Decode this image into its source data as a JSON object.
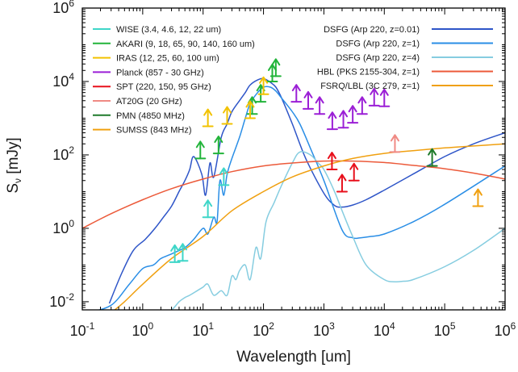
{
  "chart_data": {
    "type": "line",
    "xlabel": "Wavelength [um]",
    "ylabel": "S",
    "ylabel_sub": "ν",
    "ylabel_unit": " [mJy]",
    "xscale": "log",
    "yscale": "log",
    "xlim": [
      0.1,
      1000000
    ],
    "ylim": [
      0.006,
      1000000
    ],
    "x_tick_labels": [
      {
        "base": "10",
        "exp": "-1"
      },
      {
        "base": "10",
        "exp": "0"
      },
      {
        "base": "10",
        "exp": "1"
      },
      {
        "base": "10",
        "exp": "2"
      },
      {
        "base": "10",
        "exp": "3"
      },
      {
        "base": "10",
        "exp": "4"
      },
      {
        "base": "10",
        "exp": "5"
      },
      {
        "base": "10",
        "exp": "6"
      }
    ],
    "y_tick_labels": [
      {
        "base": "10",
        "exp": "-2"
      },
      {
        "base": "10",
        "exp": "0"
      },
      {
        "base": "10",
        "exp": "2"
      },
      {
        "base": "10",
        "exp": "4"
      },
      {
        "base": "10",
        "exp": "6"
      }
    ],
    "grid": false,
    "legends": [
      {
        "placement": "top-left",
        "entries": [
          {
            "label": "WISE (3.4, 4.6, 12, 22 um)",
            "color": "#3fd6c8"
          },
          {
            "label": "AKARI (9, 18, 65, 90, 140, 160 um)",
            "color": "#22b43a"
          },
          {
            "label": "IRAS (12, 25, 60, 100 um)",
            "color": "#f2c200"
          },
          {
            "label": "Planck (857 - 30 GHz)",
            "color": "#9b1fd6"
          },
          {
            "label": "SPT (220, 150, 95 GHz)",
            "color": "#e8101c"
          },
          {
            "label": "AT20G (20 GHz)",
            "color": "#f08a84"
          },
          {
            "label": "PMN (4850 MHz)",
            "color": "#1e7a2a"
          },
          {
            "label": "SUMSS (843 MHz)",
            "color": "#f0a010"
          }
        ]
      },
      {
        "placement": "top-right",
        "entries": [
          {
            "label": "DSFG (Arp 220, z=0.01)",
            "color": "#2e55c8"
          },
          {
            "label": "DSFG (Arp 220, z=1)",
            "color": "#2a8ee6"
          },
          {
            "label": "DSFG (Arp 220, z=4)",
            "color": "#86cde0"
          },
          {
            "label": "HBL (PKS 2155-304, z=1)",
            "color": "#ec5a3a"
          },
          {
            "label": "FSRQ/LBL (3C 279, z=1)",
            "color": "#f0a010"
          }
        ]
      }
    ],
    "series": [
      {
        "name": "DSFG (Arp 220, z=0.01)",
        "color": "#2e55c8",
        "x": [
          0.28,
          0.45,
          0.7,
          1.1,
          1.6,
          2.2,
          3.0,
          4.0,
          5.0,
          6.0,
          7.0,
          9.5,
          11,
          13,
          15,
          20,
          25,
          30,
          40,
          50,
          60,
          80,
          100,
          130,
          160,
          200,
          300,
          500,
          1000,
          1500,
          2000,
          3000,
          5000,
          10000,
          30000,
          100000,
          300000,
          1000000
        ],
        "y": [
          0.009,
          0.06,
          0.25,
          0.5,
          1.0,
          2.0,
          4.0,
          10,
          20,
          40,
          90,
          30,
          8,
          60,
          25,
          300,
          700,
          1500,
          3000,
          5000,
          8000,
          11000,
          12000,
          9500,
          7000,
          3500,
          700,
          80,
          9,
          4.2,
          3.8,
          4.3,
          6.0,
          11,
          30,
          90,
          200,
          400
        ]
      },
      {
        "name": "DSFG (Arp 220, z=1)",
        "color": "#2a8ee6",
        "x": [
          0.12,
          0.3,
          0.6,
          1.0,
          1.5,
          2.0,
          3.0,
          5.0,
          7.0,
          10,
          12,
          15,
          17,
          19,
          22,
          25,
          30,
          40,
          50,
          60,
          80,
          100,
          130,
          160,
          200,
          300,
          400,
          600,
          1000,
          2000,
          3000,
          4000,
          6000,
          10000,
          30000,
          100000,
          1000000
        ],
        "y": [
          0.005,
          0.008,
          0.03,
          0.08,
          0.1,
          0.15,
          0.2,
          0.3,
          0.5,
          1.0,
          0.7,
          2.0,
          1.5,
          20,
          8,
          30,
          80,
          300,
          1000,
          2500,
          5000,
          7000,
          7000,
          5500,
          3500,
          1500,
          700,
          150,
          20,
          0.9,
          0.55,
          0.55,
          0.6,
          0.7,
          1.5,
          4.5,
          50
        ]
      },
      {
        "name": "DSFG (Arp 220, z=4)",
        "color": "#86cde0",
        "x": [
          2.0,
          3.0,
          4.0,
          5.0,
          6.0,
          8.0,
          10,
          12,
          15,
          20,
          25,
          30,
          35,
          40,
          50,
          60,
          75,
          90,
          110,
          150,
          200,
          300,
          400,
          600,
          800,
          1000,
          1500,
          2000,
          3000,
          5000,
          10000,
          15000,
          20000,
          30000,
          100000,
          300000,
          1000000
        ],
        "y": [
          0.005,
          0.006,
          0.01,
          0.013,
          0.015,
          0.02,
          0.025,
          0.03,
          0.015,
          0.02,
          0.015,
          0.05,
          0.04,
          0.07,
          0.1,
          0.04,
          0.3,
          0.15,
          1.5,
          5,
          15,
          60,
          120,
          100,
          60,
          40,
          10,
          3,
          0.6,
          0.1,
          0.04,
          0.035,
          0.036,
          0.04,
          0.09,
          0.25,
          1.0
        ]
      },
      {
        "name": "HBL (PKS 2155-304, z=1)",
        "color": "#ec5a3a",
        "x": [
          0.1,
          0.3,
          1.0,
          3.0,
          10,
          30,
          100,
          300,
          1000,
          3000,
          10000,
          30000,
          100000,
          300000,
          1000000
        ],
        "y": [
          1.0,
          2.5,
          6.0,
          12,
          22,
          35,
          50,
          60,
          68,
          68,
          62,
          52,
          42,
          32,
          22
        ]
      },
      {
        "name": "FSRQ/LBL (3C 279, z=1)",
        "color": "#f0a010",
        "x": [
          0.3,
          0.5,
          1.0,
          3.0,
          10,
          30,
          100,
          300,
          1000,
          3000,
          10000,
          30000,
          100000,
          300000,
          1000000
        ],
        "y": [
          0.005,
          0.01,
          0.03,
          0.15,
          0.6,
          3,
          10,
          25,
          50,
          80,
          110,
          130,
          155,
          175,
          200
        ]
      }
    ],
    "upper_limits": [
      {
        "survey": "WISE",
        "color": "#3fd6c8",
        "points": [
          [
            3.4,
            0.12
          ],
          [
            4.6,
            0.13
          ],
          [
            12,
            2.0
          ],
          [
            22,
            15
          ]
        ]
      },
      {
        "survey": "AKARI",
        "color": "#22b43a",
        "points": [
          [
            9,
            80
          ],
          [
            18,
            110
          ],
          [
            65,
            1300
          ],
          [
            90,
            2800
          ],
          [
            140,
            10000
          ],
          [
            160,
            14000
          ]
        ]
      },
      {
        "survey": "IRAS",
        "color": "#f2c200",
        "points": [
          [
            12,
            600
          ],
          [
            25,
            700
          ],
          [
            60,
            1000
          ],
          [
            100,
            4500
          ]
        ]
      },
      {
        "survey": "Planck",
        "color": "#9b1fd6",
        "points": [
          [
            350,
            2800
          ],
          [
            550,
            1800
          ],
          [
            850,
            1300
          ],
          [
            1380,
            500
          ],
          [
            2100,
            550
          ],
          [
            3000,
            750
          ],
          [
            4300,
            1300
          ],
          [
            6800,
            2200
          ],
          [
            10000,
            2100
          ]
        ]
      },
      {
        "survey": "SPT",
        "color": "#e8101c",
        "points": [
          [
            1360,
            40
          ],
          [
            2000,
            10
          ],
          [
            3150,
            20
          ]
        ]
      },
      {
        "survey": "AT20G",
        "color": "#f08a84",
        "points": [
          [
            15000,
            120
          ]
        ]
      },
      {
        "survey": "PMN",
        "color": "#1e7a2a",
        "points": [
          [
            62000,
            50
          ]
        ]
      },
      {
        "survey": "SUMSS",
        "color": "#f0a010",
        "points": [
          [
            356000,
            4
          ]
        ]
      }
    ]
  }
}
